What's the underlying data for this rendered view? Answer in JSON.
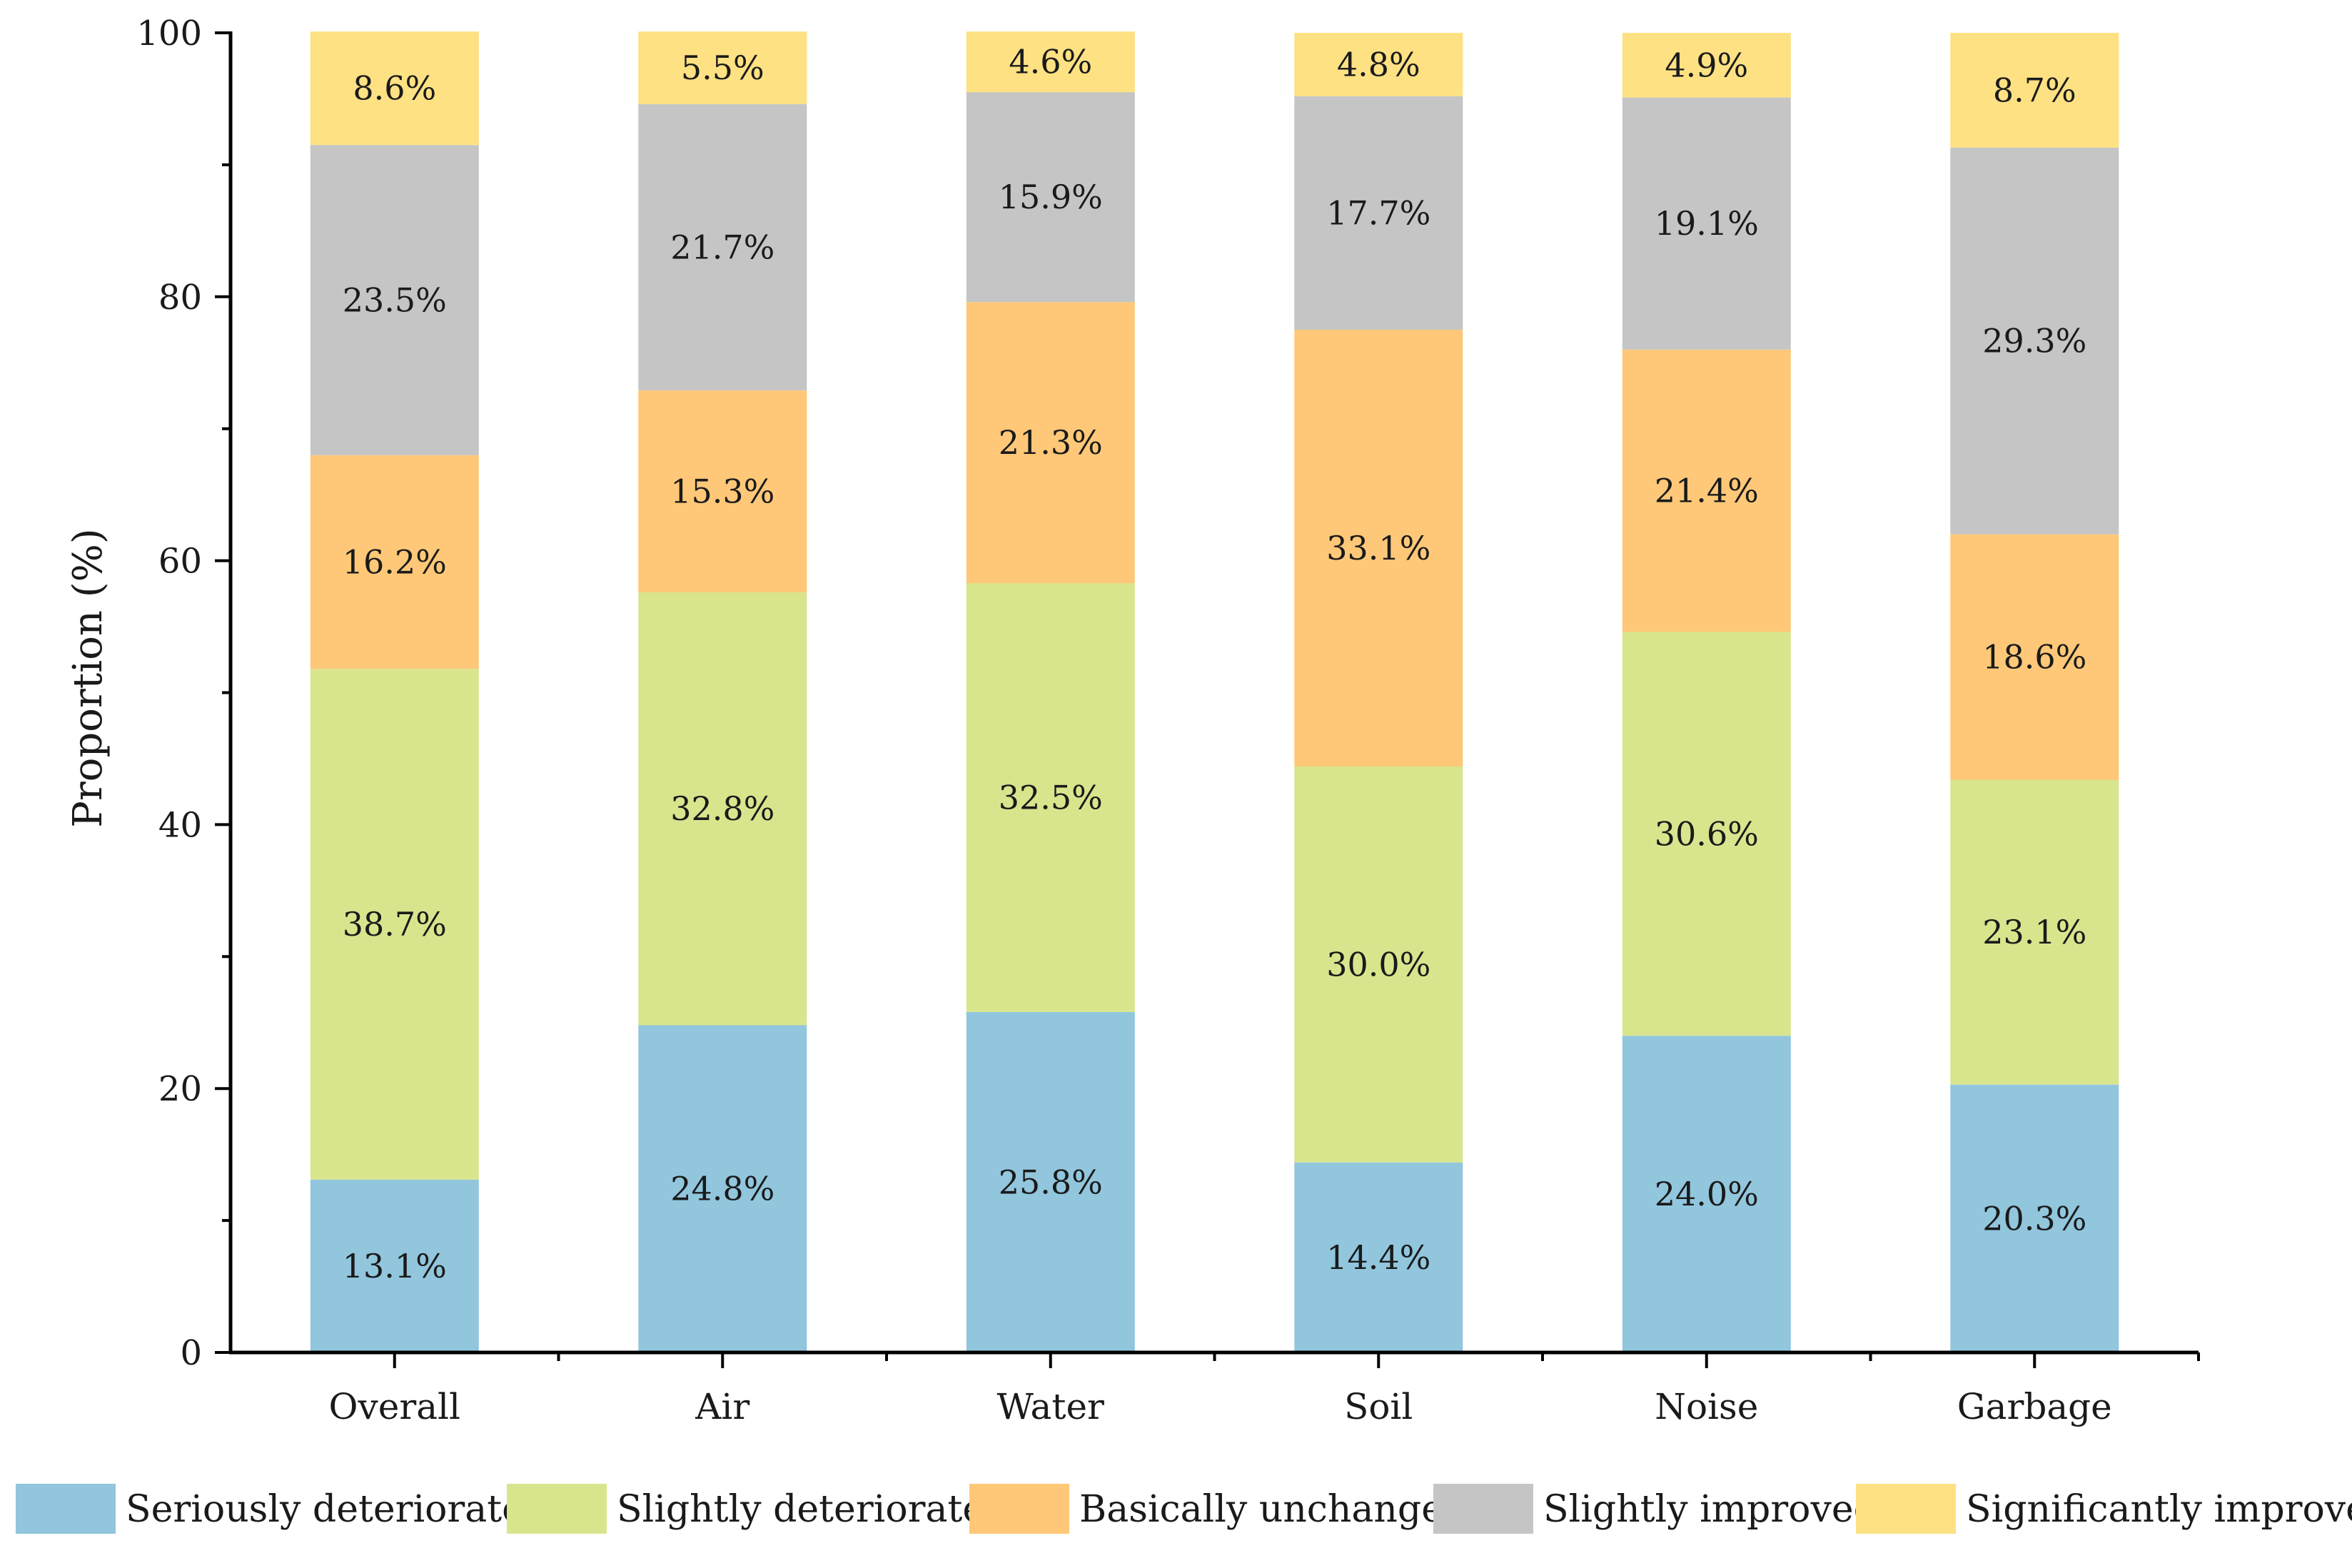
{
  "chart_data": {
    "type": "bar",
    "stacked": true,
    "ylabel": "Proportion (%)",
    "ylim": [
      0,
      100
    ],
    "yticks": [
      0,
      20,
      40,
      60,
      80,
      100
    ],
    "categories": [
      "Overall",
      "Air",
      "Water",
      "Soil",
      "Noise",
      "Garbage"
    ],
    "series": [
      {
        "name": "Seriously deteriorated",
        "color": "#91c6dd",
        "values": [
          13.1,
          24.8,
          25.8,
          14.4,
          24.0,
          20.3
        ],
        "labels": [
          "13.1%",
          "24.8%",
          "25.8%",
          "14.4%",
          "24.0%",
          "20.3%"
        ]
      },
      {
        "name": "Slightly deteriorated",
        "color": "#d9e58d",
        "values": [
          38.7,
          32.8,
          32.5,
          30.0,
          30.6,
          23.1
        ],
        "labels": [
          "38.7%",
          "32.8%",
          "32.5%",
          "30.0%",
          "30.6%",
          "23.1%"
        ]
      },
      {
        "name": "Basically unchanged",
        "color": "#fec878",
        "values": [
          16.2,
          15.3,
          21.3,
          33.1,
          21.4,
          18.6
        ],
        "labels": [
          "16.2%",
          "15.3%",
          "21.3%",
          "33.1%",
          "21.4%",
          "18.6%"
        ]
      },
      {
        "name": "Slightly improved",
        "color": "#c5c5c5",
        "values": [
          23.5,
          21.7,
          15.9,
          17.7,
          19.1,
          29.3
        ],
        "labels": [
          "23.5%",
          "21.7%",
          "15.9%",
          "17.7%",
          "19.1%",
          "29.3%"
        ]
      },
      {
        "name": "Significantly improved",
        "color": "#fde183",
        "values": [
          8.6,
          5.5,
          4.6,
          4.8,
          4.9,
          8.7
        ],
        "labels": [
          "8.6%",
          "5.5%",
          "4.6%",
          "4.8%",
          "4.9%",
          "8.7%"
        ]
      }
    ],
    "legend_position": "bottom",
    "grid": false
  }
}
